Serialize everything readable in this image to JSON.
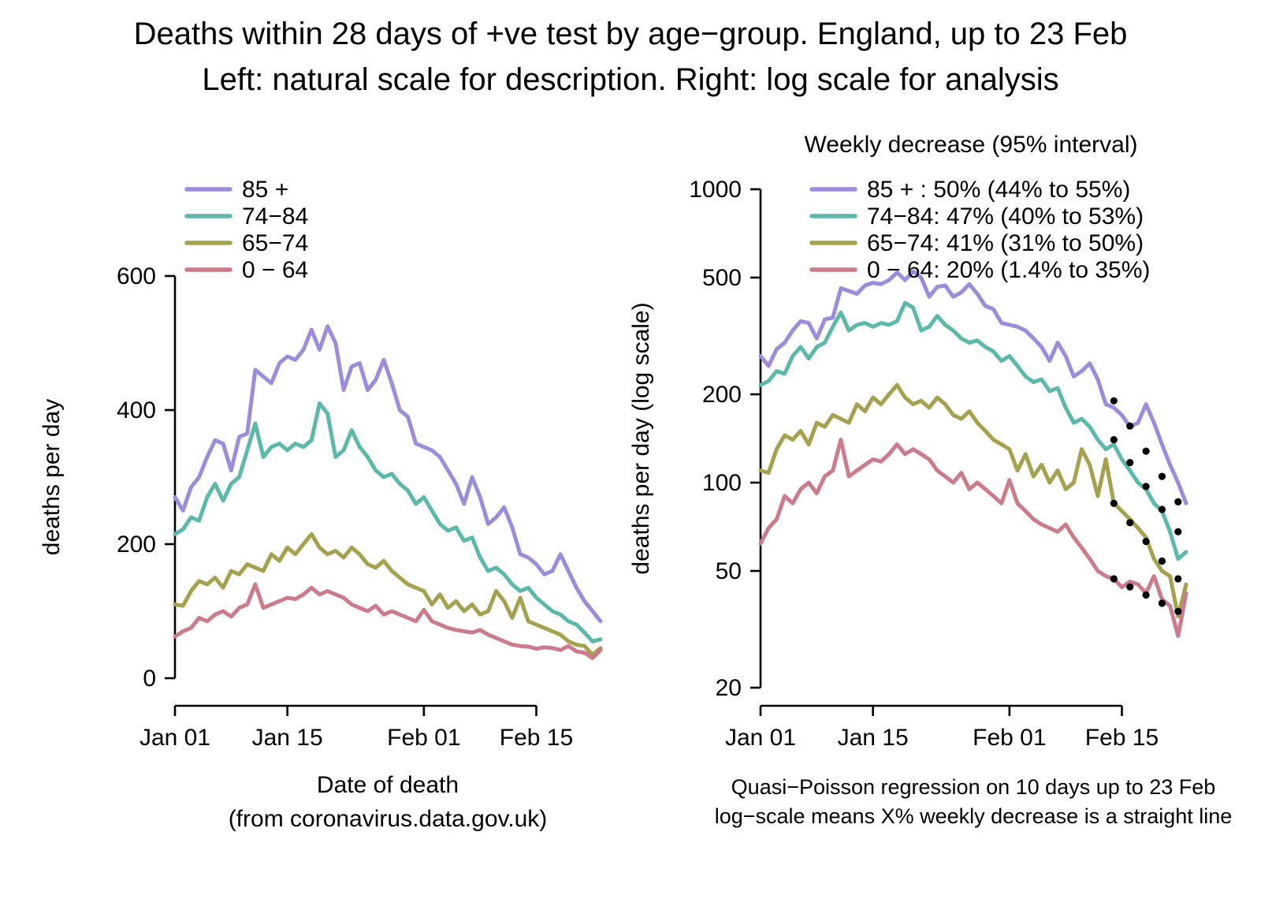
{
  "title": {
    "line1": "Deaths within 28 days of +ve test by age−group. England, up to 23 Feb",
    "line2": "Left: natural scale for description. Right: log scale for analysis"
  },
  "palette": {
    "85+": "#9C8CDB",
    "74-84": "#5CB9A9",
    "65-74": "#A4A14F",
    "0-64": "#CB7B8B",
    "fit_dots": "#000000"
  },
  "chart_data": [
    {
      "type": "line",
      "panel": "left",
      "yscale": "linear",
      "ylabel": "deaths per day",
      "xlabel": "Date of death",
      "xlabel2": "(from coronavirus.data.gov.uk)",
      "ylim": [
        0,
        600
      ],
      "yticks": [
        0,
        200,
        400,
        600
      ],
      "x_days": 54,
      "xticks": [
        {
          "day": 1,
          "label": "Jan 01"
        },
        {
          "day": 15,
          "label": "Jan 15"
        },
        {
          "day": 32,
          "label": "Feb 01"
        },
        {
          "day": 46,
          "label": "Feb 15"
        }
      ],
      "legend": [
        {
          "label": "85  +",
          "color_key": "85+"
        },
        {
          "label": "74−84",
          "color_key": "74-84"
        },
        {
          "label": "65−74",
          "color_key": "65-74"
        },
        {
          "label": "0 − 64",
          "color_key": "0-64"
        }
      ],
      "series": [
        {
          "name": "85+",
          "color_key": "85+",
          "values": [
            270,
            250,
            285,
            300,
            330,
            355,
            350,
            310,
            360,
            365,
            460,
            450,
            440,
            470,
            480,
            475,
            490,
            520,
            490,
            525,
            500,
            430,
            465,
            470,
            430,
            445,
            475,
            440,
            400,
            390,
            350,
            345,
            340,
            330,
            310,
            290,
            260,
            300,
            270,
            230,
            240,
            255,
            225,
            185,
            180,
            170,
            155,
            160,
            185,
            160,
            135,
            115,
            100,
            85
          ]
        },
        {
          "name": "74-84",
          "color_key": "74-84",
          "values": [
            215,
            222,
            240,
            235,
            270,
            290,
            265,
            290,
            300,
            340,
            380,
            330,
            345,
            350,
            340,
            350,
            345,
            355,
            410,
            395,
            330,
            340,
            370,
            345,
            330,
            310,
            300,
            305,
            290,
            280,
            260,
            270,
            250,
            230,
            220,
            225,
            205,
            210,
            180,
            160,
            165,
            155,
            140,
            130,
            135,
            120,
            110,
            100,
            95,
            85,
            80,
            68,
            55,
            58
          ]
        },
        {
          "name": "65-74",
          "color_key": "65-74",
          "values": [
            110,
            108,
            130,
            145,
            140,
            150,
            135,
            160,
            155,
            170,
            165,
            160,
            185,
            175,
            195,
            185,
            200,
            215,
            195,
            185,
            190,
            180,
            195,
            185,
            170,
            165,
            175,
            160,
            150,
            140,
            135,
            130,
            110,
            125,
            105,
            115,
            100,
            110,
            95,
            100,
            130,
            115,
            90,
            120,
            85,
            80,
            75,
            70,
            65,
            55,
            50,
            48,
            35,
            45
          ]
        },
        {
          "name": "0-64",
          "color_key": "0-64",
          "values": [
            62,
            70,
            75,
            90,
            85,
            95,
            100,
            92,
            105,
            110,
            140,
            105,
            110,
            115,
            120,
            118,
            125,
            135,
            125,
            130,
            125,
            120,
            110,
            105,
            100,
            108,
            95,
            100,
            95,
            90,
            85,
            102,
            85,
            80,
            75,
            72,
            70,
            68,
            72,
            65,
            60,
            55,
            50,
            48,
            47,
            44,
            46,
            45,
            42,
            48,
            40,
            38,
            30,
            42
          ]
        }
      ]
    },
    {
      "type": "line",
      "panel": "right",
      "yscale": "log",
      "ylabel": "deaths per day (log scale)",
      "legend_title": "Weekly decrease (95% interval)",
      "caption1": "Quasi−Poisson regression on 10 days up to 23 Feb",
      "caption2": "log−scale means X% weekly decrease is a straight line",
      "ylim": [
        20,
        1000
      ],
      "yticks": [
        20,
        50,
        100,
        200,
        500,
        1000
      ],
      "x_days": 54,
      "xticks": [
        {
          "day": 1,
          "label": "Jan 01"
        },
        {
          "day": 15,
          "label": "Jan 15"
        },
        {
          "day": 32,
          "label": "Feb 01"
        },
        {
          "day": 46,
          "label": "Feb 15"
        }
      ],
      "series_note": "plots the same four series as the left panel (chart_data[0].series) on a log scale",
      "legend": [
        {
          "label": "85  + :  50% (44% to 55%)",
          "color_key": "85+"
        },
        {
          "label": "74−84:  47% (40% to 53%)",
          "color_key": "74-84"
        },
        {
          "label": "65−74:  41% (31% to 50%)",
          "color_key": "65-74"
        },
        {
          "label": "0 − 64:  20% (1.4% to 35%)",
          "color_key": "0-64"
        }
      ],
      "weekly_decrease": [
        {
          "group": "85 +",
          "estimate": "50%",
          "interval": "44% to 55%"
        },
        {
          "group": "74−84",
          "estimate": "47%",
          "interval": "40% to 53%"
        },
        {
          "group": "65−74",
          "estimate": "41%",
          "interval": "31% to 50%"
        },
        {
          "group": "0 − 64",
          "estimate": "20%",
          "interval": "1.4% to 35%"
        }
      ],
      "fits": [
        {
          "color_key": "85+",
          "start_day": 45,
          "values": [
            190,
            172,
            156,
            141,
            128,
            116,
            105,
            95,
            86,
            78
          ]
        },
        {
          "color_key": "74-84",
          "start_day": 45,
          "values": [
            140,
            128,
            117,
            107,
            97,
            89,
            81,
            74,
            68,
            62
          ]
        },
        {
          "color_key": "65-74",
          "start_day": 45,
          "values": [
            85,
            79,
            73,
            68,
            63,
            58,
            54,
            50,
            47,
            43
          ]
        },
        {
          "color_key": "0-64",
          "start_day": 45,
          "values": [
            47,
            45.5,
            44.1,
            42.7,
            41.4,
            40.1,
            38.8,
            37.6,
            36.4,
            35.3
          ]
        }
      ]
    }
  ]
}
